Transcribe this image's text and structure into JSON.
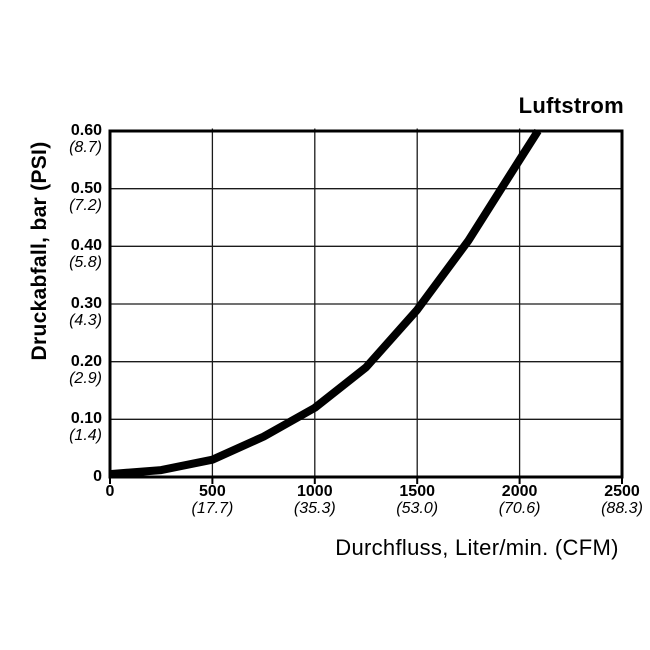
{
  "chart_data": {
    "type": "line",
    "title": "Luftstrom",
    "xlabel": "Durchfluss, Liter/min. (CFM)",
    "ylabel": "Druckabfall, bar (PSI)",
    "xlim": [
      0,
      2500
    ],
    "ylim": [
      0,
      0.6
    ],
    "grid": true,
    "legend": false,
    "x_ticks": [
      {
        "value": 0,
        "label": "0",
        "sub": ""
      },
      {
        "value": 500,
        "label": "500",
        "sub": "(17.7)"
      },
      {
        "value": 1000,
        "label": "1000",
        "sub": "(35.3)"
      },
      {
        "value": 1500,
        "label": "1500",
        "sub": "(53.0)"
      },
      {
        "value": 2000,
        "label": "2000",
        "sub": "(70.6)"
      },
      {
        "value": 2500,
        "label": "2500",
        "sub": "(88.3)"
      }
    ],
    "y_ticks": [
      {
        "value": 0.6,
        "label": "0.60",
        "sub": "(8.7)"
      },
      {
        "value": 0.5,
        "label": "0.50",
        "sub": "(7.2)"
      },
      {
        "value": 0.4,
        "label": "0.40",
        "sub": "(5.8)"
      },
      {
        "value": 0.3,
        "label": "0.30",
        "sub": "(4.3)"
      },
      {
        "value": 0.2,
        "label": "0.20",
        "sub": "(2.9)"
      },
      {
        "value": 0.1,
        "label": "0.10",
        "sub": "(1.4)"
      },
      {
        "value": 0,
        "label": "0",
        "sub": ""
      }
    ],
    "series": [
      {
        "name": "Druckabfall",
        "points": [
          [
            0,
            0.005
          ],
          [
            250,
            0.012
          ],
          [
            500,
            0.03
          ],
          [
            750,
            0.07
          ],
          [
            1000,
            0.12
          ],
          [
            1250,
            0.19
          ],
          [
            1500,
            0.29
          ],
          [
            1750,
            0.41
          ],
          [
            2000,
            0.55
          ],
          [
            2090,
            0.6
          ]
        ]
      }
    ],
    "colors": {
      "line": "#000000",
      "grid": "#1a1a1a",
      "border": "#000000",
      "text": "#000000",
      "background": "#ffffff"
    }
  }
}
